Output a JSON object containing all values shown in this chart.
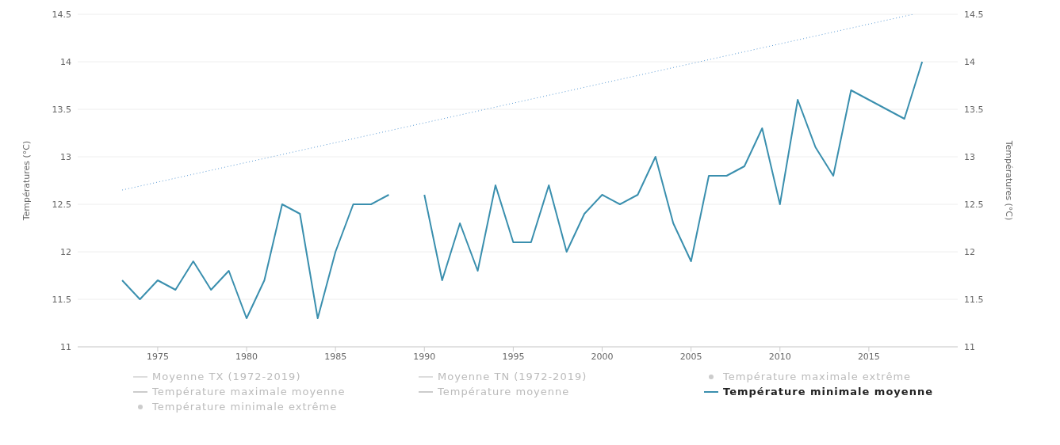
{
  "chart_data": {
    "type": "line",
    "x": [
      1973,
      1974,
      1975,
      1976,
      1977,
      1978,
      1979,
      1980,
      1981,
      1982,
      1983,
      1984,
      1985,
      1986,
      1987,
      1988,
      1989,
      1990,
      1991,
      1992,
      1993,
      1994,
      1995,
      1996,
      1997,
      1998,
      1999,
      2000,
      2001,
      2002,
      2003,
      2004,
      2005,
      2006,
      2007,
      2008,
      2009,
      2010,
      2011,
      2012,
      2013,
      2014,
      2015,
      2016,
      2017,
      2018
    ],
    "series": [
      {
        "name": "Moyenne TX (1972-2019)",
        "type": "line",
        "color": "#dddddd",
        "values": [
          null,
          null,
          null,
          null,
          null,
          null,
          null,
          null,
          null,
          null,
          null,
          null,
          null,
          null,
          null,
          null,
          null,
          null,
          null,
          null,
          null,
          null,
          null,
          null,
          null,
          null,
          null,
          null,
          null,
          null,
          null,
          null,
          null,
          null,
          null,
          null,
          null,
          null,
          null,
          null,
          null,
          null,
          null,
          null,
          null,
          null
        ]
      },
      {
        "name": "Moyenne TN (1972-2019)",
        "type": "line",
        "color": "#dddddd",
        "values": [
          null,
          null,
          null,
          null,
          null,
          null,
          null,
          null,
          null,
          null,
          null,
          null,
          null,
          null,
          null,
          null,
          null,
          null,
          null,
          null,
          null,
          null,
          null,
          null,
          null,
          null,
          null,
          null,
          null,
          null,
          null,
          null,
          null,
          null,
          null,
          null,
          null,
          null,
          null,
          null,
          null,
          null,
          null,
          null,
          null,
          null
        ]
      },
      {
        "name": "Température maximale extrême",
        "type": "scatter",
        "color": "#cccccc",
        "values": [
          null,
          null,
          null,
          null,
          null,
          null,
          null,
          null,
          null,
          null,
          null,
          null,
          null,
          null,
          null,
          null,
          null,
          null,
          null,
          null,
          null,
          null,
          null,
          null,
          null,
          null,
          null,
          null,
          null,
          null,
          null,
          null,
          null,
          null,
          null,
          null,
          null,
          null,
          null,
          null,
          null,
          null,
          null,
          null,
          null,
          null
        ]
      },
      {
        "name": "Température maximale moyenne",
        "type": "line",
        "color": "#cccccc",
        "values": [
          null,
          null,
          null,
          null,
          null,
          null,
          null,
          null,
          null,
          null,
          null,
          null,
          null,
          null,
          null,
          null,
          null,
          null,
          null,
          null,
          null,
          null,
          null,
          null,
          null,
          null,
          null,
          null,
          null,
          null,
          null,
          null,
          null,
          null,
          null,
          null,
          null,
          null,
          null,
          null,
          null,
          null,
          null,
          null,
          null,
          null
        ]
      },
      {
        "name": "Température moyenne",
        "type": "line",
        "color": "#cccccc",
        "values": [
          null,
          null,
          null,
          null,
          null,
          null,
          null,
          null,
          null,
          null,
          null,
          null,
          null,
          null,
          null,
          null,
          null,
          null,
          null,
          null,
          null,
          null,
          null,
          null,
          null,
          null,
          null,
          null,
          null,
          null,
          null,
          null,
          null,
          null,
          null,
          null,
          null,
          null,
          null,
          null,
          null,
          null,
          null,
          null,
          null,
          null
        ]
      },
      {
        "name": "Température minimale moyenne",
        "color": "#3a8fae",
        "values": [
          11.7,
          11.5,
          11.7,
          11.6,
          11.9,
          11.6,
          11.8,
          11.3,
          11.7,
          12.5,
          12.4,
          11.3,
          12.0,
          12.5,
          12.5,
          12.6,
          null,
          12.6,
          11.7,
          12.3,
          11.8,
          12.7,
          12.1,
          12.1,
          12.7,
          12.0,
          12.4,
          12.6,
          12.5,
          12.6,
          13.0,
          12.3,
          11.9,
          12.8,
          12.8,
          12.9,
          13.3,
          12.5,
          13.6,
          13.1,
          12.8,
          13.7,
          13.6,
          13.5,
          13.4,
          14.0
        ]
      },
      {
        "name": "Température minimale extrême",
        "type": "scatter",
        "color": "#cccccc",
        "values": [
          null,
          null,
          null,
          null,
          null,
          null,
          null,
          null,
          null,
          null,
          null,
          null,
          null,
          null,
          null,
          null,
          null,
          null,
          null,
          null,
          null,
          null,
          null,
          null,
          null,
          null,
          null,
          null,
          null,
          null,
          null,
          null,
          null,
          null,
          null,
          null,
          null,
          null,
          null,
          null,
          null,
          null,
          null,
          null,
          null,
          null
        ]
      },
      {
        "type": "line",
        "color": "#5b9bd5",
        "line_style": "dotted",
        "x": [
          1973,
          2017.5
        ],
        "values": [
          12.65,
          14.5
        ]
      }
    ],
    "ylabel": "Températures (°C)",
    "y2label": "Températures (°C)",
    "xlim": [
      1970.5,
      2020
    ],
    "xticks": [
      1975,
      1980,
      1985,
      1990,
      1995,
      2000,
      2005,
      2010,
      2015
    ],
    "ylim": [
      11,
      14.5
    ],
    "yticks": [
      11,
      11.5,
      12,
      12.5,
      13,
      13.5,
      14,
      14.5
    ],
    "y2lim": [
      11,
      14.5
    ],
    "y2ticks": [
      11,
      11.5,
      12,
      12.5,
      13,
      13.5,
      14,
      14.5
    ],
    "grid": "y",
    "legend": "bottom",
    "marker": "none"
  }
}
